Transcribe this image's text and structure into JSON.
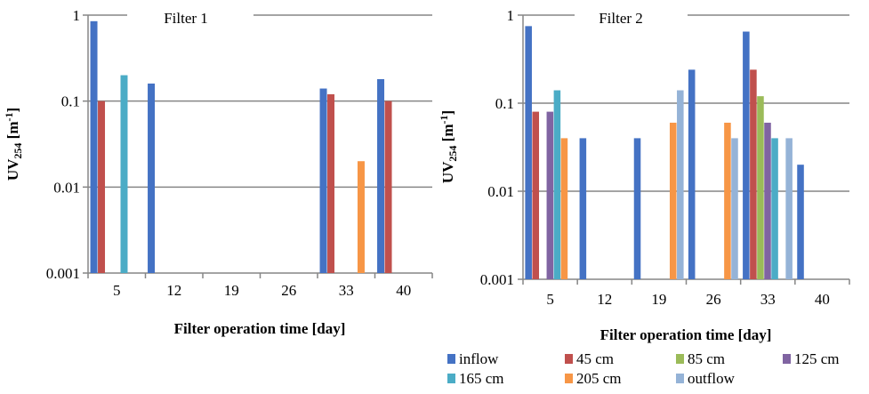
{
  "chart_data": [
    {
      "type": "bar",
      "title": "Filter 1",
      "xlabel": "Filter operation time [day]",
      "ylabel": "UV254 [m-1]",
      "ylabel_main": "UV",
      "ylabel_sub": "254",
      "ylabel_unit": " [m",
      "ylabel_sup": "-1",
      "ylabel_close": "]",
      "yscale": "log",
      "ylim": [
        0.001,
        1
      ],
      "yticks": [
        "0.001",
        "0.01",
        "0.1",
        "1"
      ],
      "yticks_values": [
        0.001,
        0.01,
        0.1,
        1
      ],
      "categories": [
        "5",
        "12",
        "19",
        "26",
        "33",
        "40"
      ],
      "grid": true,
      "series": [
        {
          "name": "inflow",
          "color": "#4472C4",
          "values": [
            0.85,
            0.16,
            null,
            null,
            0.14,
            0.18
          ]
        },
        {
          "name": "45 cm",
          "color": "#C0504D",
          "values": [
            0.1,
            null,
            null,
            null,
            0.12,
            0.1
          ]
        },
        {
          "name": "85 cm",
          "color": "#9BBB59",
          "values": [
            null,
            null,
            null,
            null,
            null,
            null
          ]
        },
        {
          "name": "125 cm",
          "color": "#8064A2",
          "values": [
            null,
            null,
            null,
            null,
            null,
            null
          ]
        },
        {
          "name": "165 cm",
          "color": "#4BACC6",
          "values": [
            0.2,
            null,
            null,
            null,
            null,
            null
          ]
        },
        {
          "name": "205 cm",
          "color": "#F79646",
          "values": [
            null,
            null,
            null,
            null,
            0.02,
            null
          ]
        },
        {
          "name": "outflow",
          "color": "#95B3D7",
          "values": [
            null,
            null,
            null,
            null,
            null,
            null
          ]
        }
      ]
    },
    {
      "type": "bar",
      "title": "Filter 2",
      "xlabel": "Filter operation time [day]",
      "ylabel": "UV254 [m-1]",
      "ylabel_main": "UV",
      "ylabel_sub": "254",
      "ylabel_unit": " [m",
      "ylabel_sup": "-1",
      "ylabel_close": "]",
      "yscale": "log",
      "ylim": [
        0.001,
        1
      ],
      "yticks": [
        "0.001",
        "0.01",
        "0.1",
        "1"
      ],
      "yticks_values": [
        0.001,
        0.01,
        0.1,
        1
      ],
      "categories": [
        "5",
        "12",
        "19",
        "26",
        "33",
        "40"
      ],
      "grid": true,
      "legend_position": "bottom",
      "series": [
        {
          "name": "inflow",
          "color": "#4472C4",
          "values": [
            0.75,
            0.04,
            0.04,
            0.24,
            0.65,
            0.02
          ]
        },
        {
          "name": "45 cm",
          "color": "#C0504D",
          "values": [
            0.08,
            null,
            null,
            null,
            0.24,
            null
          ]
        },
        {
          "name": "85 cm",
          "color": "#9BBB59",
          "values": [
            null,
            null,
            null,
            null,
            0.12,
            null
          ]
        },
        {
          "name": "125 cm",
          "color": "#8064A2",
          "values": [
            0.08,
            null,
            null,
            null,
            0.06,
            null
          ]
        },
        {
          "name": "165 cm",
          "color": "#4BACC6",
          "values": [
            0.14,
            null,
            null,
            null,
            0.04,
            null
          ]
        },
        {
          "name": "205 cm",
          "color": "#F79646",
          "values": [
            0.04,
            null,
            0.06,
            0.06,
            null,
            null
          ]
        },
        {
          "name": "outflow",
          "color": "#95B3D7",
          "values": [
            null,
            null,
            0.14,
            0.04,
            0.04,
            null
          ]
        }
      ]
    }
  ]
}
